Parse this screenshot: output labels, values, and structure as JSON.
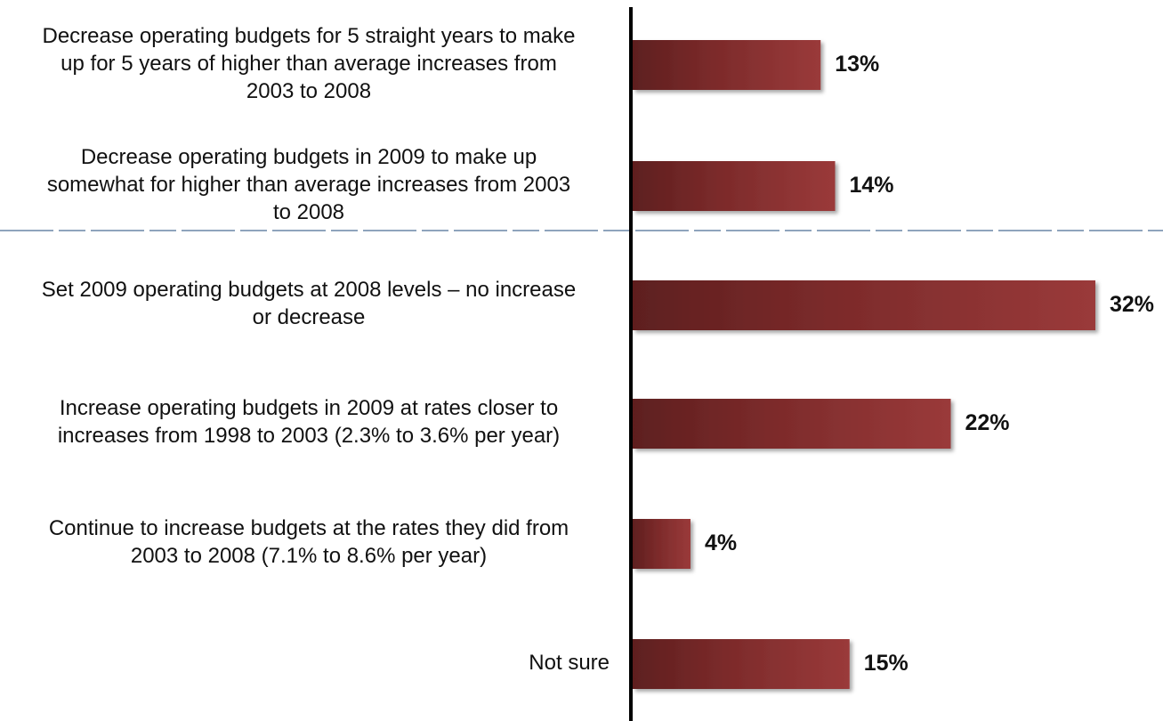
{
  "chart_data": {
    "type": "bar",
    "orientation": "horizontal",
    "categories": [
      "Decrease operating budgets for 5 straight years to make up for 5 years of higher than average increases from 2003 to 2008",
      "Decrease operating budgets in 2009 to make up somewhat for higher than average increases from 2003 to 2008",
      "Set 2009 operating budgets at 2008 levels – no increase or decrease",
      "Increase operating budgets in 2009 at rates closer to increases from 1998 to 2003 (2.3% to 3.6% per year)",
      "Continue to increase budgets at the rates they did from 2003 to 2008 (7.1% to 8.6% per year)",
      "Not sure"
    ],
    "category_lines": [
      [
        "Decrease operating budgets for 5 straight years to make",
        "up for 5 years of higher than average increases from",
        "2003 to 2008"
      ],
      [
        "Decrease operating budgets in 2009 to make up",
        "somewhat for higher than average increases from 2003",
        "to 2008"
      ],
      [
        "Set 2009 operating budgets at 2008 levels – no increase",
        "or decrease"
      ],
      [
        "Increase operating budgets in 2009 at rates closer to",
        "increases from 1998 to 2003 (2.3% to 3.6% per year)"
      ],
      [
        "Continue to increase budgets at the rates they did from",
        "2003 to 2008 (7.1% to 8.6% per year)"
      ],
      [
        "Not sure"
      ]
    ],
    "values": [
      13,
      14,
      32,
      22,
      4,
      15
    ],
    "value_labels": [
      "13%",
      "14%",
      "32%",
      "22%",
      "4%",
      "15%"
    ],
    "unit": "%",
    "xlim": [
      0,
      34
    ],
    "grid": false,
    "legend": "none",
    "bar_color_dark": "#5e1f1f",
    "bar_color_light": "#9a3a3a"
  }
}
